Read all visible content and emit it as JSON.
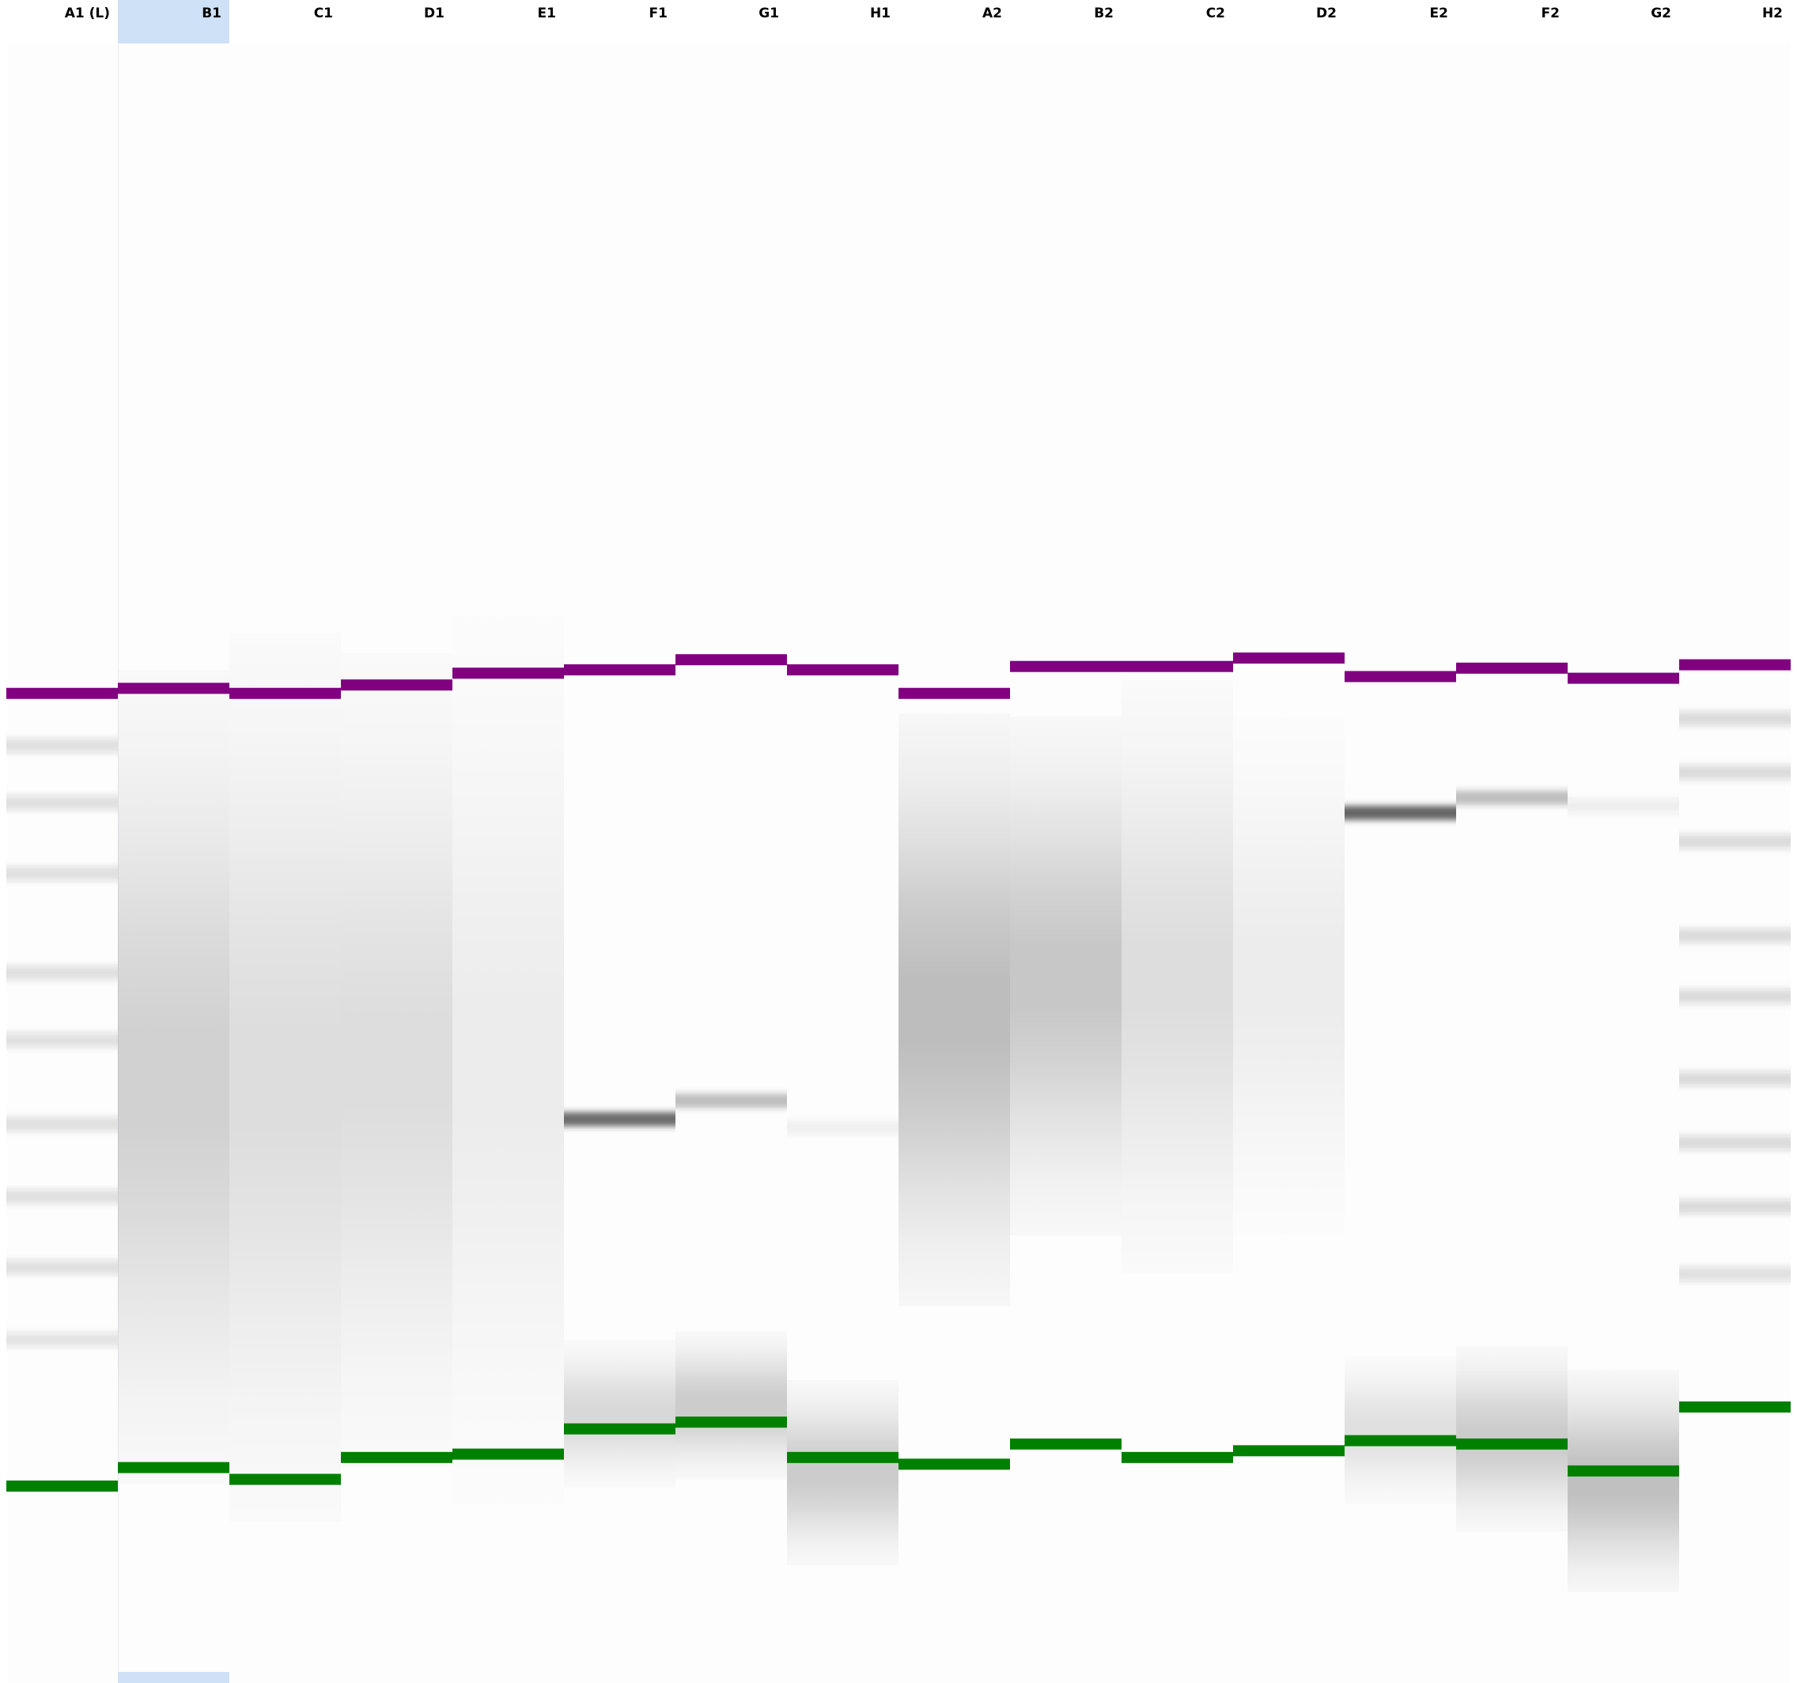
{
  "colors": {
    "upper_marker": "#800080",
    "lower_marker": "#008000",
    "band": "#303030",
    "selection": "#cfe1f7",
    "background": "#fdfdfd"
  },
  "selected_lane": "B1",
  "lanes": [
    {
      "label": "A1 (L)",
      "type": "ladder",
      "upper_marker": 0.412,
      "lower_marker": 0.883,
      "bands": [
        {
          "pos": 0.443,
          "i": 0.14
        },
        {
          "pos": 0.477,
          "i": 0.14
        },
        {
          "pos": 0.519,
          "i": 0.14
        },
        {
          "pos": 0.578,
          "i": 0.14
        },
        {
          "pos": 0.618,
          "i": 0.14
        },
        {
          "pos": 0.668,
          "i": 0.14
        },
        {
          "pos": 0.711,
          "i": 0.14
        },
        {
          "pos": 0.753,
          "i": 0.14
        },
        {
          "pos": 0.796,
          "i": 0.12
        }
      ]
    },
    {
      "label": "B1",
      "type": "sample",
      "upper_marker": 0.409,
      "lower_marker": 0.872,
      "smears": [
        {
          "center": 0.64,
          "spread": 0.11,
          "i": 0.18
        }
      ],
      "bands": []
    },
    {
      "label": "C1",
      "type": "sample",
      "upper_marker": 0.412,
      "lower_marker": 0.879,
      "smears": [
        {
          "center": 0.64,
          "spread": 0.12,
          "i": 0.13
        }
      ],
      "bands": []
    },
    {
      "label": "D1",
      "type": "sample",
      "upper_marker": 0.407,
      "lower_marker": 0.866,
      "smears": [
        {
          "center": 0.63,
          "spread": 0.11,
          "i": 0.13
        }
      ],
      "bands": []
    },
    {
      "label": "E1",
      "type": "sample",
      "upper_marker": 0.4,
      "lower_marker": 0.864,
      "smears": [
        {
          "center": 0.63,
          "spread": 0.12,
          "i": 0.07
        }
      ],
      "bands": []
    },
    {
      "label": "F1",
      "type": "sample",
      "upper_marker": 0.398,
      "lower_marker": 0.849,
      "smears": [
        {
          "center": 0.84,
          "spread": 0.02,
          "i": 0.15
        }
      ],
      "bands": [
        {
          "pos": 0.665,
          "i": 0.7
        }
      ]
    },
    {
      "label": "G1",
      "type": "sample",
      "upper_marker": 0.392,
      "lower_marker": 0.845,
      "smears": [
        {
          "center": 0.835,
          "spread": 0.02,
          "i": 0.2
        }
      ],
      "bands": [
        {
          "pos": 0.654,
          "i": 0.3
        }
      ]
    },
    {
      "label": "H1",
      "type": "sample",
      "upper_marker": 0.398,
      "lower_marker": 0.866,
      "smears": [
        {
          "center": 0.875,
          "spread": 0.025,
          "i": 0.2
        }
      ],
      "bands": [
        {
          "pos": 0.67,
          "i": 0.05
        }
      ]
    },
    {
      "label": "A2",
      "type": "sample",
      "upper_marker": 0.412,
      "lower_marker": 0.87,
      "smears": [
        {
          "center": 0.6,
          "spread": 0.08,
          "i": 0.26
        }
      ],
      "bands": []
    },
    {
      "label": "B2",
      "type": "sample",
      "upper_marker": 0.396,
      "lower_marker": 0.858,
      "smears": [
        {
          "center": 0.58,
          "spread": 0.07,
          "i": 0.22
        }
      ],
      "bands": []
    },
    {
      "label": "C2",
      "type": "sample",
      "upper_marker": 0.396,
      "lower_marker": 0.866,
      "smears": [
        {
          "center": 0.58,
          "spread": 0.08,
          "i": 0.13
        }
      ],
      "bands": []
    },
    {
      "label": "D2",
      "type": "sample",
      "upper_marker": 0.391,
      "lower_marker": 0.862,
      "smears": [
        {
          "center": 0.58,
          "spread": 0.07,
          "i": 0.07
        }
      ],
      "bands": []
    },
    {
      "label": "E2",
      "type": "sample",
      "upper_marker": 0.402,
      "lower_marker": 0.856,
      "smears": [
        {
          "center": 0.85,
          "spread": 0.02,
          "i": 0.12
        }
      ],
      "bands": [
        {
          "pos": 0.483,
          "i": 0.75
        }
      ]
    },
    {
      "label": "F2",
      "type": "sample",
      "upper_marker": 0.397,
      "lower_marker": 0.858,
      "smears": [
        {
          "center": 0.855,
          "spread": 0.025,
          "i": 0.2
        }
      ],
      "bands": [
        {
          "pos": 0.474,
          "i": 0.3
        }
      ]
    },
    {
      "label": "G2",
      "type": "sample",
      "upper_marker": 0.403,
      "lower_marker": 0.874,
      "smears": [
        {
          "center": 0.88,
          "spread": 0.03,
          "i": 0.25
        }
      ],
      "bands": [
        {
          "pos": 0.479,
          "i": 0.08
        }
      ]
    },
    {
      "label": "H2",
      "type": "ladder",
      "upper_marker": 0.395,
      "lower_marker": 0.836,
      "bands": [
        {
          "pos": 0.427,
          "i": 0.16
        },
        {
          "pos": 0.459,
          "i": 0.16
        },
        {
          "pos": 0.5,
          "i": 0.16
        },
        {
          "pos": 0.556,
          "i": 0.16
        },
        {
          "pos": 0.592,
          "i": 0.16
        },
        {
          "pos": 0.641,
          "i": 0.16
        },
        {
          "pos": 0.679,
          "i": 0.16
        },
        {
          "pos": 0.717,
          "i": 0.16
        },
        {
          "pos": 0.757,
          "i": 0.14
        }
      ]
    }
  ]
}
